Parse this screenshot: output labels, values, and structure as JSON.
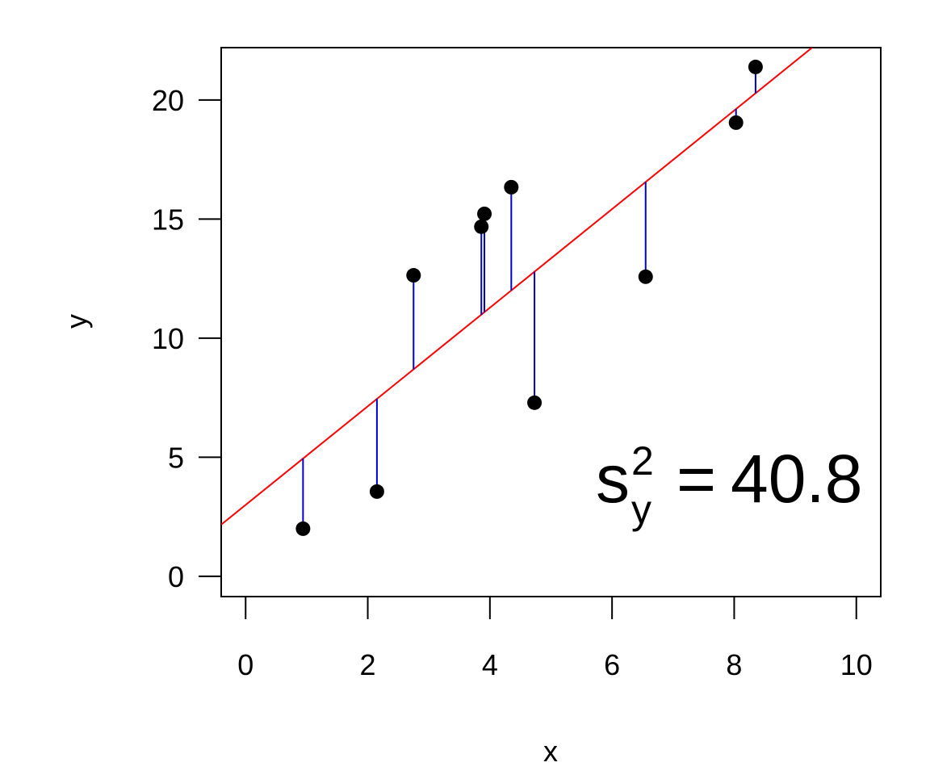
{
  "chart_data": {
    "type": "scatter",
    "x_label": "x",
    "y_label": "y",
    "x": [
      0.94,
      2.15,
      2.75,
      3.86,
      3.91,
      4.35,
      4.73,
      6.55,
      8.03,
      8.35
    ],
    "values": [
      2.0,
      3.56,
      12.64,
      14.68,
      15.22,
      16.34,
      7.29,
      12.58,
      19.05,
      21.39
    ],
    "color": "#000000",
    "line": {
      "intercept": 3.0,
      "slope": 2.07,
      "color": "#ff0000"
    },
    "residual_color": "#0000cc",
    "xlim": [
      -0.4,
      10.4
    ],
    "xticks": [
      0,
      2,
      4,
      6,
      8,
      10
    ],
    "ylim": [
      -0.85,
      22.2
    ],
    "yticks": [
      0,
      5,
      10,
      15,
      20
    ],
    "annotation": {
      "text": "s",
      "subscript": "y",
      "superscript": "2",
      "equals": "=",
      "value": "40.8"
    }
  }
}
